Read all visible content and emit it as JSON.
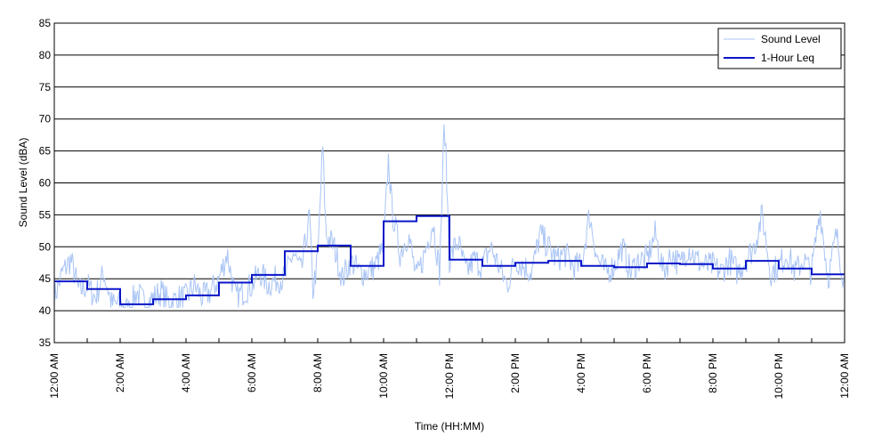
{
  "chart_data": {
    "type": "line",
    "title": "",
    "xlabel": "Time (HH:MM)",
    "ylabel": "Sound Level (dBA)",
    "ylim": [
      35,
      85
    ],
    "yticks": [
      35,
      40,
      45,
      50,
      55,
      60,
      65,
      70,
      75,
      80,
      85
    ],
    "xlim_hours": [
      0,
      24
    ],
    "xtick_labels": [
      "12:00 AM",
      "2:00 AM",
      "4:00 AM",
      "6:00 AM",
      "8:00 AM",
      "10:00 AM",
      "12:00 PM",
      "2:00 PM",
      "4:00 PM",
      "6:00 PM",
      "8:00 PM",
      "10:00 PM",
      "12:00 AM"
    ],
    "grid": "horizontal",
    "legend": "top-right",
    "colors": {
      "sound_level": "#a9c4f5",
      "leq": "#0a16c8"
    },
    "series": [
      {
        "name": "Sound Level",
        "x": [
          0.0,
          0.25,
          0.5,
          0.75,
          1.0,
          1.25,
          1.5,
          1.75,
          2.0,
          2.25,
          2.5,
          2.75,
          3.0,
          3.25,
          3.5,
          3.75,
          4.0,
          4.25,
          4.5,
          4.75,
          5.0,
          5.25,
          5.5,
          5.75,
          6.0,
          6.25,
          6.5,
          6.75,
          7.0,
          7.25,
          7.5,
          7.75,
          7.85,
          8.0,
          8.15,
          8.25,
          8.5,
          8.75,
          9.0,
          9.25,
          9.5,
          9.75,
          10.0,
          10.15,
          10.25,
          10.5,
          10.75,
          11.0,
          11.25,
          11.5,
          11.7,
          11.85,
          12.0,
          12.25,
          12.5,
          12.75,
          13.0,
          13.25,
          13.5,
          13.75,
          14.0,
          14.25,
          14.5,
          14.75,
          15.0,
          15.25,
          15.5,
          15.75,
          16.0,
          16.25,
          16.5,
          16.75,
          17.0,
          17.25,
          17.5,
          17.75,
          18.0,
          18.25,
          18.5,
          18.75,
          19.0,
          19.25,
          19.5,
          19.75,
          20.0,
          20.25,
          20.5,
          20.75,
          21.0,
          21.25,
          21.5,
          21.75,
          22.0,
          22.25,
          22.5,
          22.75,
          23.0,
          23.25,
          23.5,
          23.75,
          24.0
        ],
        "y": [
          42,
          46,
          48,
          43,
          44,
          42,
          46,
          41,
          41,
          40,
          43,
          41,
          42,
          43,
          41,
          42,
          42,
          44,
          42,
          43,
          45,
          49,
          42,
          43,
          44,
          46,
          44,
          45,
          45,
          49,
          46,
          55,
          43,
          48,
          66,
          52,
          50,
          45,
          48,
          46,
          46,
          47,
          50,
          64,
          56,
          49,
          52,
          45,
          49,
          54,
          46,
          70,
          48,
          51,
          46,
          48,
          47,
          50,
          47,
          44,
          48,
          47,
          46,
          52,
          50,
          48,
          49,
          47,
          47,
          55,
          48,
          46,
          47,
          50,
          46,
          48,
          48,
          52,
          46,
          49,
          47,
          50,
          48,
          47,
          47,
          46,
          48,
          46,
          48,
          50,
          55,
          46,
          47,
          49,
          46,
          48,
          46,
          56,
          45,
          52,
          44
        ]
      },
      {
        "name": "1-Hour Leq",
        "values": [
          44.6,
          43.4,
          41.0,
          41.8,
          42.4,
          44.4,
          45.6,
          49.3,
          50.2,
          47.0,
          54.0,
          54.8,
          48.0,
          47.0,
          47.5,
          47.8,
          47.0,
          46.8,
          47.4,
          47.3,
          46.6,
          47.8,
          46.6,
          45.7
        ]
      }
    ]
  }
}
